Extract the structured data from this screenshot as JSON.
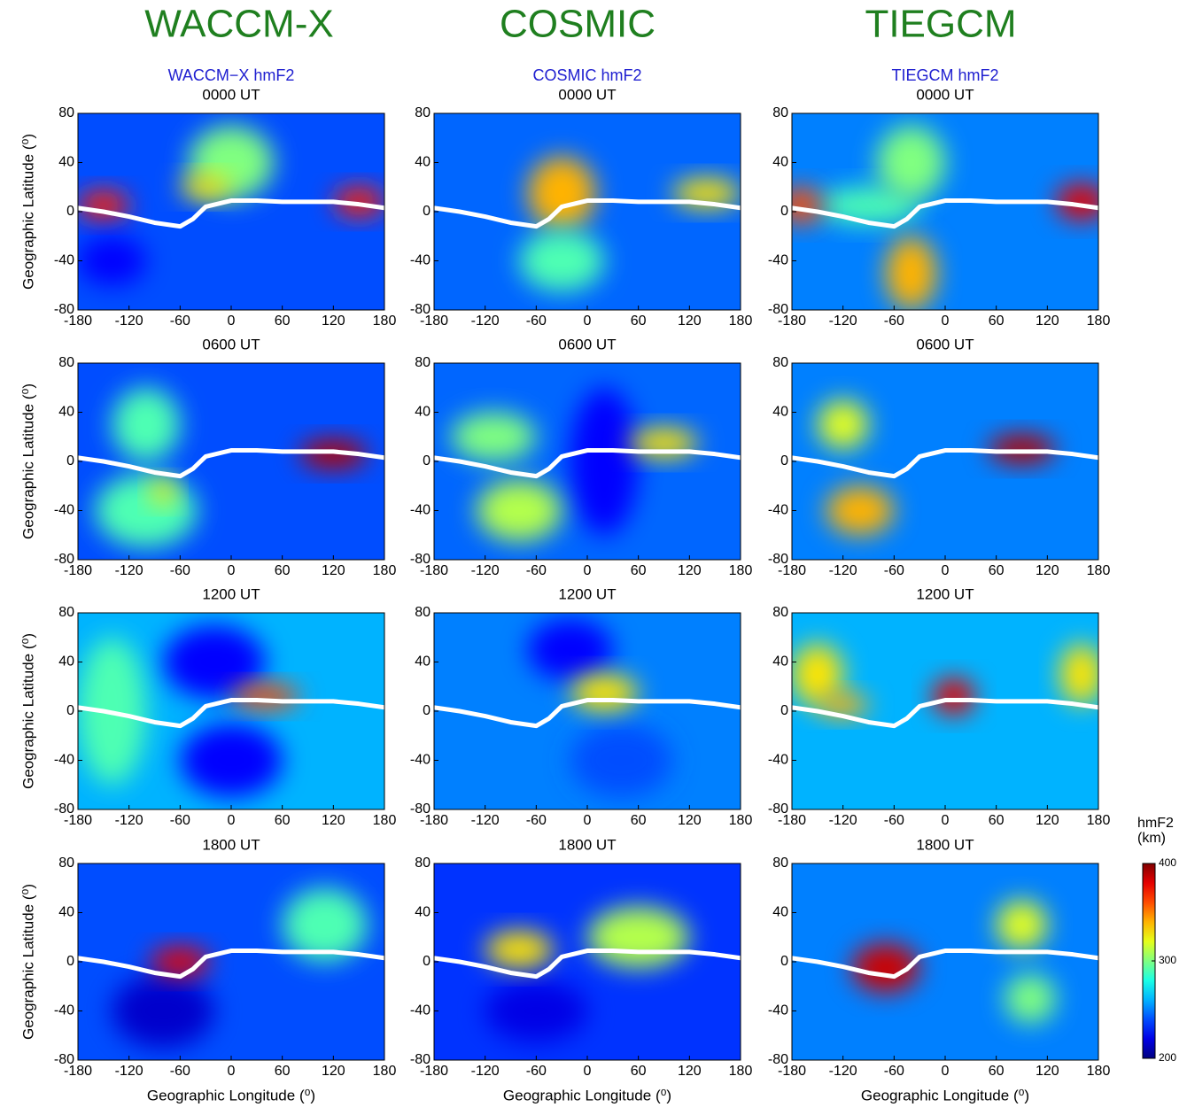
{
  "figure": {
    "columns": [
      {
        "heading": "WACCM-X",
        "label": "WACCM−X  hmF2"
      },
      {
        "heading": "COSMIC",
        "label": "COSMIC  hmF2"
      },
      {
        "heading": "TIEGCM",
        "label": "TIEGCM hmF2"
      }
    ],
    "magnetic_equator": {
      "x": [
        -180,
        -150,
        -120,
        -90,
        -60,
        -45,
        -30,
        0,
        30,
        60,
        90,
        120,
        150,
        180
      ],
      "y": [
        3,
        0,
        -4,
        -9,
        -12,
        -6,
        4,
        9,
        9,
        8,
        8,
        8,
        6,
        3
      ]
    }
  },
  "chart_data": [
    {
      "type": "heatmap",
      "title": "0000 UT",
      "ylabel": "Geographic Latitude (⁰)",
      "xlim": [
        -180,
        180
      ],
      "ylim": [
        -80,
        80
      ],
      "xticks": [
        -180,
        -120,
        -60,
        0,
        60,
        120,
        180
      ],
      "yticks": [
        -80,
        -40,
        0,
        40,
        80
      ],
      "background": 240,
      "features": [
        {
          "lon": -150,
          "lat": 5,
          "dlon": 30,
          "dlat": 12,
          "value": 370
        },
        {
          "lon": 150,
          "lat": 8,
          "dlon": 30,
          "dlat": 12,
          "value": 370
        },
        {
          "lon": 0,
          "lat": 40,
          "dlon": 50,
          "dlat": 30,
          "value": 300
        },
        {
          "lon": -30,
          "lat": 20,
          "dlon": 30,
          "dlat": 10,
          "value": 330
        },
        {
          "lon": -140,
          "lat": -40,
          "dlon": 40,
          "dlat": 20,
          "value": 225
        }
      ]
    },
    {
      "type": "heatmap",
      "title": "0000 UT",
      "xlim": [
        -180,
        180
      ],
      "ylim": [
        -80,
        80
      ],
      "xticks": [
        -180,
        -120,
        -60,
        0,
        60,
        120,
        180
      ],
      "yticks": [
        -80,
        -40,
        0,
        40,
        80
      ],
      "background": 245,
      "features": [
        {
          "lon": -30,
          "lat": 15,
          "dlon": 40,
          "dlat": 30,
          "value": 340
        },
        {
          "lon": 140,
          "lat": 15,
          "dlon": 40,
          "dlat": 12,
          "value": 330
        },
        {
          "lon": -30,
          "lat": -40,
          "dlon": 50,
          "dlat": 25,
          "value": 290
        }
      ]
    },
    {
      "type": "heatmap",
      "title": "0000 UT",
      "xlim": [
        -180,
        180
      ],
      "ylim": [
        -80,
        80
      ],
      "xticks": [
        -180,
        -120,
        -60,
        0,
        60,
        120,
        180
      ],
      "yticks": [
        -80,
        -40,
        0,
        40,
        80
      ],
      "background": 250,
      "features": [
        {
          "lon": -90,
          "lat": 5,
          "dlon": 60,
          "dlat": 15,
          "value": 290
        },
        {
          "lon": -40,
          "lat": 40,
          "dlon": 40,
          "dlat": 30,
          "value": 300
        },
        {
          "lon": -170,
          "lat": 5,
          "dlon": 25,
          "dlat": 15,
          "value": 360
        },
        {
          "lon": 160,
          "lat": 8,
          "dlon": 30,
          "dlat": 15,
          "value": 380
        },
        {
          "lon": -40,
          "lat": -50,
          "dlon": 30,
          "dlat": 30,
          "value": 340
        }
      ]
    },
    {
      "type": "heatmap",
      "title": "0600 UT",
      "ylabel": "Geographic Latitude (⁰)",
      "xlim": [
        -180,
        180
      ],
      "ylim": [
        -80,
        80
      ],
      "xticks": [
        -180,
        -120,
        -60,
        0,
        60,
        120,
        180
      ],
      "yticks": [
        -80,
        -40,
        0,
        40,
        80
      ],
      "background": 240,
      "features": [
        {
          "lon": -100,
          "lat": 30,
          "dlon": 40,
          "dlat": 30,
          "value": 290
        },
        {
          "lon": -100,
          "lat": -40,
          "dlon": 60,
          "dlat": 30,
          "value": 290
        },
        {
          "lon": 120,
          "lat": 6,
          "dlon": 40,
          "dlat": 12,
          "value": 390
        },
        {
          "lon": -80,
          "lat": -25,
          "dlon": 15,
          "dlat": 10,
          "value": 330
        }
      ]
    },
    {
      "type": "heatmap",
      "title": "0600 UT",
      "xlim": [
        -180,
        180
      ],
      "ylim": [
        -80,
        80
      ],
      "xticks": [
        -180,
        -120,
        -60,
        0,
        60,
        120,
        180
      ],
      "yticks": [
        -80,
        -40,
        0,
        40,
        80
      ],
      "background": 245,
      "features": [
        {
          "lon": 20,
          "lat": 0,
          "dlon": 40,
          "dlat": 60,
          "value": 225
        },
        {
          "lon": -110,
          "lat": 20,
          "dlon": 50,
          "dlat": 20,
          "value": 300
        },
        {
          "lon": -80,
          "lat": -40,
          "dlon": 50,
          "dlat": 25,
          "value": 310
        },
        {
          "lon": 90,
          "lat": 15,
          "dlon": 40,
          "dlat": 12,
          "value": 330
        }
      ]
    },
    {
      "type": "heatmap",
      "title": "0600 UT",
      "xlim": [
        -180,
        180
      ],
      "ylim": [
        -80,
        80
      ],
      "xticks": [
        -180,
        -120,
        -60,
        0,
        60,
        120,
        180
      ],
      "yticks": [
        -80,
        -40,
        0,
        40,
        80
      ],
      "background": 250,
      "features": [
        {
          "lon": -120,
          "lat": 30,
          "dlon": 30,
          "dlat": 20,
          "value": 320
        },
        {
          "lon": -100,
          "lat": -40,
          "dlon": 40,
          "dlat": 20,
          "value": 340
        },
        {
          "lon": 90,
          "lat": 10,
          "dlon": 40,
          "dlat": 12,
          "value": 390
        }
      ]
    },
    {
      "type": "heatmap",
      "title": "1200 UT",
      "ylabel": "Geographic Latitude (⁰)",
      "xlim": [
        -180,
        180
      ],
      "ylim": [
        -80,
        80
      ],
      "xticks": [
        -180,
        -120,
        -60,
        0,
        60,
        120,
        180
      ],
      "yticks": [
        -80,
        -40,
        0,
        40,
        80
      ],
      "background": 260,
      "features": [
        {
          "lon": -20,
          "lat": 40,
          "dlon": 60,
          "dlat": 30,
          "value": 225
        },
        {
          "lon": 0,
          "lat": -40,
          "dlon": 60,
          "dlat": 30,
          "value": 225
        },
        {
          "lon": -140,
          "lat": 0,
          "dlon": 40,
          "dlat": 60,
          "value": 290
        },
        {
          "lon": 40,
          "lat": 12,
          "dlon": 40,
          "dlat": 10,
          "value": 360
        }
      ]
    },
    {
      "type": "heatmap",
      "title": "1200 UT",
      "xlim": [
        -180,
        180
      ],
      "ylim": [
        -80,
        80
      ],
      "xticks": [
        -180,
        -120,
        -60,
        0,
        60,
        120,
        180
      ],
      "yticks": [
        -80,
        -40,
        0,
        40,
        80
      ],
      "background": 250,
      "features": [
        {
          "lon": -20,
          "lat": 50,
          "dlon": 50,
          "dlat": 25,
          "value": 225
        },
        {
          "lon": 40,
          "lat": -40,
          "dlon": 60,
          "dlat": 30,
          "value": 240
        },
        {
          "lon": 20,
          "lat": 15,
          "dlon": 40,
          "dlat": 15,
          "value": 330
        }
      ]
    },
    {
      "type": "heatmap",
      "title": "1200 UT",
      "xlim": [
        -180,
        180
      ],
      "ylim": [
        -80,
        80
      ],
      "xticks": [
        -180,
        -120,
        -60,
        0,
        60,
        120,
        180
      ],
      "yticks": [
        -80,
        -40,
        0,
        40,
        80
      ],
      "background": 260,
      "features": [
        {
          "lon": -150,
          "lat": 30,
          "dlon": 30,
          "dlat": 25,
          "value": 330
        },
        {
          "lon": 160,
          "lat": 30,
          "dlon": 25,
          "dlat": 25,
          "value": 330
        },
        {
          "lon": -120,
          "lat": 5,
          "dlon": 30,
          "dlat": 10,
          "value": 340
        },
        {
          "lon": 10,
          "lat": 12,
          "dlon": 25,
          "dlat": 15,
          "value": 380
        }
      ]
    },
    {
      "type": "heatmap",
      "title": "1800 UT",
      "ylabel": "Geographic Latitude (⁰)",
      "xlabel": "Geographic Longitude (⁰)",
      "xlim": [
        -180,
        180
      ],
      "ylim": [
        -80,
        80
      ],
      "xticks": [
        -180,
        -120,
        -60,
        0,
        60,
        120,
        180
      ],
      "yticks": [
        -80,
        -40,
        0,
        40,
        80
      ],
      "background": 240,
      "features": [
        {
          "lon": 110,
          "lat": 30,
          "dlon": 50,
          "dlat": 30,
          "value": 290
        },
        {
          "lon": -80,
          "lat": -40,
          "dlon": 60,
          "dlat": 30,
          "value": 215
        },
        {
          "lon": -60,
          "lat": 0,
          "dlon": 35,
          "dlat": 12,
          "value": 380
        }
      ]
    },
    {
      "type": "heatmap",
      "title": "1800 UT",
      "xlabel": "Geographic Longitude (⁰)",
      "xlim": [
        -180,
        180
      ],
      "ylim": [
        -80,
        80
      ],
      "xticks": [
        -180,
        -120,
        -60,
        0,
        60,
        120,
        180
      ],
      "yticks": [
        -80,
        -40,
        0,
        40,
        80
      ],
      "background": 235,
      "features": [
        {
          "lon": 60,
          "lat": 20,
          "dlon": 60,
          "dlat": 25,
          "value": 310
        },
        {
          "lon": -60,
          "lat": -40,
          "dlon": 60,
          "dlat": 25,
          "value": 220
        },
        {
          "lon": -80,
          "lat": 10,
          "dlon": 40,
          "dlat": 15,
          "value": 330
        }
      ]
    },
    {
      "type": "heatmap",
      "title": "1800 UT",
      "xlabel": "Geographic Longitude (⁰)",
      "xlim": [
        -180,
        180
      ],
      "ylim": [
        -80,
        80
      ],
      "xticks": [
        -180,
        -120,
        -60,
        0,
        60,
        120,
        180
      ],
      "yticks": [
        -80,
        -40,
        0,
        40,
        80
      ],
      "background": 250,
      "features": [
        {
          "lon": 90,
          "lat": 30,
          "dlon": 30,
          "dlat": 20,
          "value": 320
        },
        {
          "lon": 100,
          "lat": -30,
          "dlon": 30,
          "dlat": 20,
          "value": 300
        },
        {
          "lon": -70,
          "lat": -5,
          "dlon": 40,
          "dlat": 20,
          "value": 385
        }
      ]
    },
    {
      "type": "colorbar",
      "title": [
        "hmF2",
        "(km)"
      ],
      "colormap": "jet",
      "ylim": [
        200,
        400
      ],
      "yticks": [
        200,
        300,
        400
      ]
    }
  ]
}
